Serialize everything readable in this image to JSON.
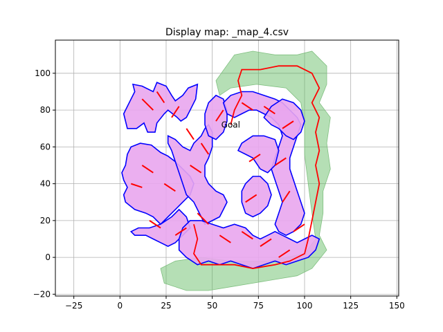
{
  "chart_data": {
    "type": "scatter",
    "title": "Display map: _map_4.csv",
    "xlabel": "",
    "ylabel": "",
    "xlim": [
      -35,
      151
    ],
    "ylim": [
      -21,
      118
    ],
    "xticks": [
      -25,
      0,
      25,
      50,
      75,
      100,
      125,
      150
    ],
    "yticks": [
      -20,
      0,
      20,
      40,
      60,
      80,
      100
    ],
    "grid": true,
    "annotations": [
      {
        "text": "Goal",
        "x": 60,
        "y": 72
      }
    ],
    "colors": {
      "obstacle_fill": "#e9a6ee",
      "obstacle_outline": "#0000ff",
      "free_space": "#5cb85c",
      "path": "#ff0000",
      "triangle_edge": "#7fbf7f"
    },
    "obstacles": [
      {
        "name": "top-left-blob",
        "points": [
          [
            2,
            78
          ],
          [
            6,
            86
          ],
          [
            8,
            90
          ],
          [
            7,
            94
          ],
          [
            12,
            93
          ],
          [
            18,
            90
          ],
          [
            20,
            95
          ],
          [
            25,
            93
          ],
          [
            28,
            88
          ],
          [
            30,
            85
          ],
          [
            34,
            88
          ],
          [
            37,
            92
          ],
          [
            42,
            94
          ],
          [
            41,
            86
          ],
          [
            38,
            80
          ],
          [
            36,
            76
          ],
          [
            33,
            74
          ],
          [
            31,
            76
          ],
          [
            26,
            80
          ],
          [
            24,
            78
          ],
          [
            20,
            73
          ],
          [
            19,
            68
          ],
          [
            15,
            68
          ],
          [
            13,
            73
          ],
          [
            9,
            70
          ],
          [
            4,
            70
          ]
        ]
      },
      {
        "name": "left-mid-blob",
        "points": [
          [
            4,
            56
          ],
          [
            6,
            60
          ],
          [
            11,
            62
          ],
          [
            17,
            61
          ],
          [
            22,
            57
          ],
          [
            26,
            55
          ],
          [
            30,
            52
          ],
          [
            34,
            48
          ],
          [
            38,
            44
          ],
          [
            40,
            40
          ],
          [
            38,
            34
          ],
          [
            34,
            30
          ],
          [
            30,
            26
          ],
          [
            26,
            22
          ],
          [
            22,
            18
          ],
          [
            18,
            22
          ],
          [
            14,
            24
          ],
          [
            8,
            26
          ],
          [
            3,
            30
          ],
          [
            2,
            34
          ],
          [
            4,
            38
          ],
          [
            2,
            42
          ],
          [
            1,
            46
          ],
          [
            3,
            50
          ]
        ]
      },
      {
        "name": "left-bottom-blob",
        "points": [
          [
            6,
            14
          ],
          [
            10,
            16
          ],
          [
            16,
            16
          ],
          [
            22,
            18
          ],
          [
            28,
            22
          ],
          [
            32,
            26
          ],
          [
            36,
            22
          ],
          [
            38,
            16
          ],
          [
            34,
            12
          ],
          [
            30,
            8
          ],
          [
            26,
            6
          ],
          [
            22,
            8
          ],
          [
            18,
            10
          ],
          [
            14,
            12
          ],
          [
            8,
            12
          ]
        ]
      },
      {
        "name": "center-column",
        "points": [
          [
            26,
            66
          ],
          [
            30,
            64
          ],
          [
            34,
            60
          ],
          [
            38,
            58
          ],
          [
            40,
            62
          ],
          [
            44,
            66
          ],
          [
            46,
            70
          ],
          [
            48,
            72
          ],
          [
            50,
            68
          ],
          [
            50,
            60
          ],
          [
            48,
            54
          ],
          [
            46,
            50
          ],
          [
            46,
            44
          ],
          [
            48,
            40
          ],
          [
            52,
            36
          ],
          [
            56,
            34
          ],
          [
            58,
            30
          ],
          [
            56,
            26
          ],
          [
            54,
            22
          ],
          [
            50,
            20
          ],
          [
            46,
            18
          ],
          [
            44,
            22
          ],
          [
            42,
            26
          ],
          [
            40,
            30
          ],
          [
            36,
            34
          ],
          [
            34,
            40
          ],
          [
            32,
            46
          ],
          [
            30,
            52
          ],
          [
            28,
            58
          ],
          [
            26,
            62
          ]
        ]
      },
      {
        "name": "center-top-blob",
        "points": [
          [
            46,
            78
          ],
          [
            48,
            84
          ],
          [
            52,
            88
          ],
          [
            56,
            86
          ],
          [
            58,
            80
          ],
          [
            58,
            74
          ],
          [
            56,
            68
          ],
          [
            52,
            64
          ],
          [
            48,
            66
          ],
          [
            46,
            72
          ]
        ]
      },
      {
        "name": "upper-arc",
        "points": [
          [
            56,
            84
          ],
          [
            60,
            88
          ],
          [
            66,
            90
          ],
          [
            72,
            90
          ],
          [
            78,
            88
          ],
          [
            84,
            86
          ],
          [
            88,
            84
          ],
          [
            92,
            80
          ],
          [
            96,
            76
          ],
          [
            98,
            72
          ],
          [
            96,
            66
          ],
          [
            94,
            60
          ],
          [
            92,
            54
          ],
          [
            92,
            48
          ],
          [
            94,
            42
          ],
          [
            96,
            36
          ],
          [
            98,
            30
          ],
          [
            100,
            24
          ],
          [
            98,
            18
          ],
          [
            94,
            14
          ],
          [
            90,
            12
          ],
          [
            86,
            14
          ],
          [
            84,
            18
          ],
          [
            86,
            24
          ],
          [
            88,
            30
          ],
          [
            86,
            36
          ],
          [
            84,
            42
          ],
          [
            82,
            48
          ],
          [
            84,
            54
          ],
          [
            86,
            60
          ],
          [
            88,
            66
          ],
          [
            86,
            72
          ],
          [
            82,
            76
          ],
          [
            78,
            78
          ],
          [
            74,
            80
          ],
          [
            70,
            80
          ],
          [
            66,
            78
          ],
          [
            62,
            76
          ],
          [
            58,
            78
          ]
        ]
      },
      {
        "name": "inner-c",
        "points": [
          [
            66,
            62
          ],
          [
            72,
            66
          ],
          [
            78,
            66
          ],
          [
            84,
            64
          ],
          [
            86,
            58
          ],
          [
            84,
            50
          ],
          [
            80,
            46
          ],
          [
            76,
            48
          ],
          [
            72,
            54
          ],
          [
            68,
            56
          ],
          [
            64,
            58
          ]
        ]
      },
      {
        "name": "right-mid-blob",
        "points": [
          [
            68,
            40
          ],
          [
            72,
            44
          ],
          [
            76,
            44
          ],
          [
            80,
            40
          ],
          [
            82,
            34
          ],
          [
            80,
            28
          ],
          [
            76,
            24
          ],
          [
            72,
            22
          ],
          [
            68,
            24
          ],
          [
            66,
            30
          ],
          [
            66,
            36
          ]
        ]
      },
      {
        "name": "bottom-chain",
        "points": [
          [
            34,
            16
          ],
          [
            38,
            20
          ],
          [
            44,
            20
          ],
          [
            50,
            18
          ],
          [
            56,
            16
          ],
          [
            62,
            18
          ],
          [
            68,
            16
          ],
          [
            72,
            12
          ],
          [
            76,
            10
          ],
          [
            80,
            12
          ],
          [
            84,
            14
          ],
          [
            88,
            12
          ],
          [
            92,
            10
          ],
          [
            96,
            8
          ],
          [
            100,
            10
          ],
          [
            104,
            12
          ],
          [
            108,
            10
          ],
          [
            106,
            4
          ],
          [
            102,
            0
          ],
          [
            96,
            -2
          ],
          [
            90,
            -4
          ],
          [
            84,
            -2
          ],
          [
            78,
            -4
          ],
          [
            72,
            -6
          ],
          [
            66,
            -4
          ],
          [
            60,
            -2
          ],
          [
            54,
            -4
          ],
          [
            48,
            -2
          ],
          [
            42,
            -4
          ],
          [
            36,
            0
          ],
          [
            32,
            4
          ],
          [
            32,
            10
          ]
        ]
      },
      {
        "name": "right-upper-blob",
        "points": [
          [
            78,
            76
          ],
          [
            82,
            82
          ],
          [
            88,
            86
          ],
          [
            94,
            84
          ],
          [
            98,
            80
          ],
          [
            100,
            74
          ],
          [
            98,
            68
          ],
          [
            94,
            64
          ],
          [
            90,
            66
          ],
          [
            86,
            70
          ],
          [
            82,
            72
          ]
        ]
      }
    ],
    "free_space_cells": [
      {
        "points": [
          [
            52,
            96
          ],
          [
            62,
            110
          ],
          [
            72,
            112
          ],
          [
            84,
            110
          ],
          [
            96,
            110
          ],
          [
            104,
            112
          ],
          [
            112,
            104
          ],
          [
            112,
            94
          ],
          [
            108,
            84
          ],
          [
            114,
            76
          ],
          [
            112,
            62
          ],
          [
            114,
            48
          ],
          [
            110,
            36
          ],
          [
            110,
            24
          ],
          [
            108,
            12
          ],
          [
            112,
            4
          ],
          [
            104,
            -6
          ],
          [
            96,
            -10
          ],
          [
            84,
            -12
          ],
          [
            72,
            -14
          ],
          [
            60,
            -16
          ],
          [
            48,
            -18
          ],
          [
            36,
            -18
          ],
          [
            24,
            -14
          ],
          [
            22,
            -6
          ],
          [
            30,
            -2
          ],
          [
            44,
            0
          ],
          [
            60,
            -2
          ],
          [
            80,
            -2
          ],
          [
            100,
            2
          ],
          [
            106,
            10
          ],
          [
            104,
            24
          ],
          [
            102,
            40
          ],
          [
            100,
            56
          ],
          [
            100,
            72
          ],
          [
            98,
            84
          ],
          [
            90,
            92
          ],
          [
            74,
            94
          ],
          [
            60,
            92
          ],
          [
            54,
            88
          ]
        ]
      }
    ],
    "path": [
      [
        60,
        72
      ],
      [
        62,
        80
      ],
      [
        66,
        88
      ],
      [
        64,
        96
      ],
      [
        66,
        102
      ],
      [
        76,
        102
      ],
      [
        86,
        104
      ],
      [
        96,
        104
      ],
      [
        104,
        100
      ],
      [
        108,
        92
      ],
      [
        104,
        84
      ],
      [
        108,
        76
      ],
      [
        106,
        68
      ],
      [
        108,
        58
      ],
      [
        106,
        50
      ],
      [
        108,
        40
      ],
      [
        106,
        30
      ],
      [
        104,
        20
      ],
      [
        102,
        10
      ],
      [
        100,
        2
      ],
      [
        92,
        -2
      ],
      [
        84,
        -4
      ],
      [
        72,
        -6
      ],
      [
        62,
        -4
      ],
      [
        52,
        -4
      ],
      [
        44,
        -4
      ],
      [
        40,
        2
      ],
      [
        42,
        10
      ],
      [
        40,
        18
      ]
    ],
    "road_segments": [
      [
        [
          12,
          86
        ],
        [
          18,
          80
        ]
      ],
      [
        [
          20,
          90
        ],
        [
          24,
          84
        ]
      ],
      [
        [
          28,
          76
        ],
        [
          32,
          82
        ]
      ],
      [
        [
          36,
          70
        ],
        [
          40,
          64
        ]
      ],
      [
        [
          44,
          62
        ],
        [
          48,
          56
        ]
      ],
      [
        [
          38,
          50
        ],
        [
          44,
          46
        ]
      ],
      [
        [
          24,
          40
        ],
        [
          30,
          36
        ]
      ],
      [
        [
          16,
          20
        ],
        [
          22,
          16
        ]
      ],
      [
        [
          30,
          12
        ],
        [
          36,
          16
        ]
      ],
      [
        [
          42,
          24
        ],
        [
          48,
          18
        ]
      ],
      [
        [
          54,
          12
        ],
        [
          60,
          8
        ]
      ],
      [
        [
          66,
          14
        ],
        [
          72,
          10
        ]
      ],
      [
        [
          76,
          6
        ],
        [
          82,
          10
        ]
      ],
      [
        [
          86,
          0
        ],
        [
          92,
          4
        ]
      ],
      [
        [
          94,
          14
        ],
        [
          100,
          18
        ]
      ],
      [
        [
          88,
          30
        ],
        [
          92,
          36
        ]
      ],
      [
        [
          84,
          50
        ],
        [
          90,
          54
        ]
      ],
      [
        [
          88,
          70
        ],
        [
          94,
          74
        ]
      ],
      [
        [
          78,
          82
        ],
        [
          84,
          78
        ]
      ],
      [
        [
          66,
          84
        ],
        [
          72,
          80
        ]
      ],
      [
        [
          52,
          74
        ],
        [
          56,
          80
        ]
      ],
      [
        [
          68,
          30
        ],
        [
          74,
          34
        ]
      ],
      [
        [
          70,
          52
        ],
        [
          76,
          56
        ]
      ],
      [
        [
          12,
          50
        ],
        [
          18,
          46
        ]
      ],
      [
        [
          6,
          40
        ],
        [
          12,
          38
        ]
      ]
    ]
  }
}
